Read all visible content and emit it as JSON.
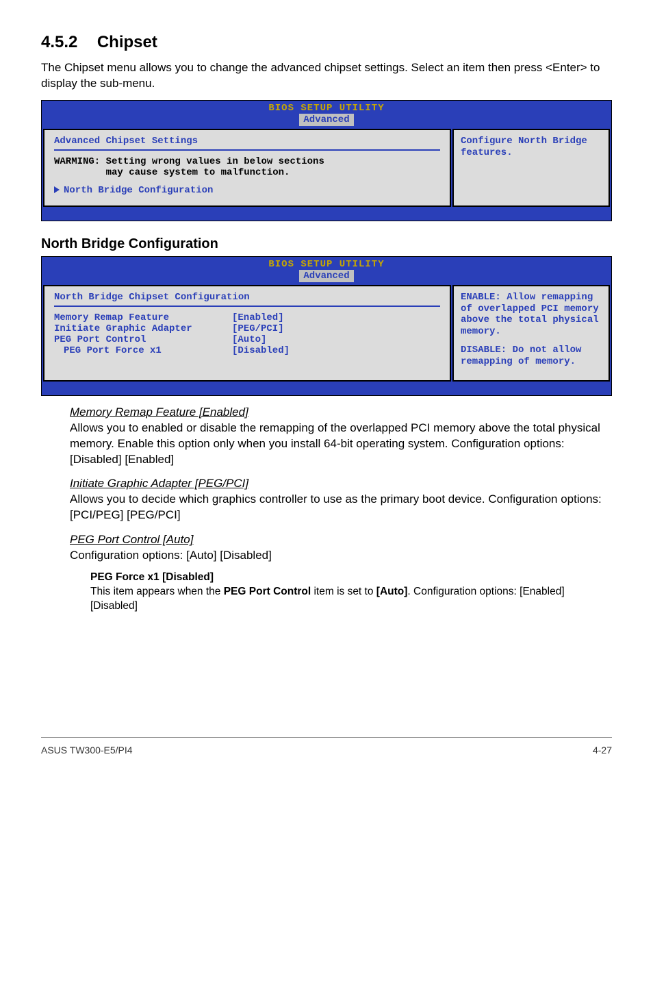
{
  "heading": {
    "number": "4.5.2",
    "title": "Chipset"
  },
  "intro": "The Chipset menu allows you to change the advanced chipset settings. Select an item then press <Enter> to display the sub-menu.",
  "bios1": {
    "title": "BIOS SETUP UTILITY",
    "tab": "Advanced",
    "left_heading": "Advanced Chipset Settings",
    "warning": "WARMING: Setting wrong values in below sections\n         may cause system to malfunction.",
    "menuitem": "North Bridge Configuration",
    "right_text": "Configure North Bridge features."
  },
  "sub_title": "North Bridge Configuration",
  "bios2": {
    "title": "BIOS SETUP UTILITY",
    "tab": "Advanced",
    "left_heading": "North Bridge Chipset Configuration",
    "rows": [
      {
        "k": "Memory Remap Feature",
        "v": "[Enabled]",
        "sub": false
      },
      {
        "k": "Initiate Graphic Adapter",
        "v": "[PEG/PCI]",
        "sub": false
      },
      {
        "k": "PEG Port Control",
        "v": "[Auto]",
        "sub": false
      },
      {
        "k": "PEG Port Force x1",
        "v": "[Disabled]",
        "sub": true
      }
    ],
    "right_p1": "ENABLE: Allow remapping of overlapped PCI memory above the total physical memory.",
    "right_p2": "DISABLE: Do not allow remapping of memory."
  },
  "items": {
    "mem_remap": {
      "title": "Memory Remap Feature [Enabled]",
      "desc": "Allows you to enabled or disable the remapping of the overlapped PCI memory above the total physical memory. Enable this option only when you install 64-bit operating system. Configuration options: [Disabled] [Enabled]"
    },
    "init_graphic": {
      "title": "Initiate Graphic Adapter [PEG/PCI]",
      "desc": "Allows you to decide which graphics controller to use as the primary boot device. Configuration options: [PCI/PEG] [PEG/PCI]"
    },
    "peg_port": {
      "title": "PEG Port Control [Auto]",
      "desc": "Configuration options: [Auto] [Disabled]"
    },
    "peg_force": {
      "title": "PEG Force x1 [Disabled]",
      "desc1": "This item appears when the ",
      "bold1": "PEG Port Control",
      "desc2": " item is set to ",
      "bold2": "[Auto]",
      "desc3": ". Configuration options: [Enabled] [Disabled]"
    }
  },
  "footer": {
    "left": "ASUS TW300-E5/PI4",
    "right": "4-27"
  }
}
